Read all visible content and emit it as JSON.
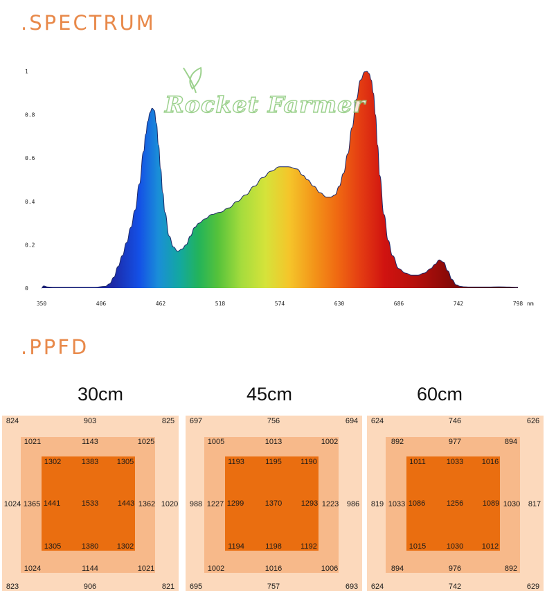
{
  "spectrum": {
    "title": ".SPECTRUM",
    "brand_text": "Rocket Farmer"
  },
  "ppfd": {
    "title": ".PPFD"
  },
  "chart_data": [
    {
      "type": "area",
      "x_unit": "nm",
      "x_ticks": [
        "350",
        "406",
        "462",
        "518",
        "574",
        "630",
        "686",
        "742",
        "798"
      ],
      "y_ticks": [
        "0",
        "0.2",
        "0.4",
        "0.6",
        "0.8",
        "1"
      ],
      "xlim": [
        350,
        798
      ],
      "ylim": [
        0,
        1
      ],
      "x": [
        350,
        352,
        356,
        362,
        370,
        380,
        390,
        400,
        410,
        414,
        418,
        422,
        426,
        430,
        434,
        438,
        442,
        446,
        448,
        450,
        452,
        454,
        456,
        458,
        460,
        462,
        464,
        466,
        470,
        474,
        478,
        482,
        486,
        490,
        494,
        498,
        504,
        510,
        518,
        526,
        534,
        542,
        550,
        558,
        566,
        574,
        582,
        590,
        596,
        600,
        606,
        612,
        618,
        622,
        626,
        630,
        634,
        638,
        642,
        646,
        650,
        654,
        656,
        658,
        660,
        662,
        664,
        666,
        668,
        672,
        676,
        680,
        686,
        692,
        698,
        704,
        710,
        716,
        720,
        724,
        728,
        732,
        736,
        740,
        744,
        748,
        752,
        760,
        770,
        780,
        790,
        798
      ],
      "values": [
        0,
        0.01,
        0.005,
        0.004,
        0.004,
        0.004,
        0.004,
        0.004,
        0.008,
        0.02,
        0.05,
        0.1,
        0.15,
        0.21,
        0.28,
        0.36,
        0.48,
        0.63,
        0.71,
        0.77,
        0.81,
        0.83,
        0.82,
        0.76,
        0.66,
        0.55,
        0.44,
        0.35,
        0.24,
        0.19,
        0.17,
        0.18,
        0.2,
        0.24,
        0.28,
        0.3,
        0.32,
        0.34,
        0.35,
        0.37,
        0.4,
        0.43,
        0.47,
        0.51,
        0.54,
        0.56,
        0.56,
        0.55,
        0.52,
        0.5,
        0.47,
        0.44,
        0.42,
        0.42,
        0.43,
        0.47,
        0.53,
        0.62,
        0.74,
        0.87,
        0.96,
        0.998,
        1.0,
        0.99,
        0.96,
        0.9,
        0.8,
        0.66,
        0.52,
        0.34,
        0.22,
        0.15,
        0.09,
        0.07,
        0.06,
        0.06,
        0.07,
        0.09,
        0.11,
        0.13,
        0.12,
        0.08,
        0.04,
        0.015,
        0.008,
        0.006,
        0.005,
        0.005,
        0.005,
        0.006,
        0.005,
        0.004
      ]
    },
    {
      "type": "table",
      "label": "30cm",
      "outer": {
        "tl": "824",
        "tc": "903",
        "tr": "825",
        "ml": "1024",
        "mr": "1020",
        "bl": "823",
        "bc": "906",
        "br": "821"
      },
      "mid": {
        "tl": "1021",
        "tc": "1143",
        "tr": "1025",
        "ml": "1365",
        "mr": "1362",
        "bl": "1024",
        "bc": "1144",
        "br": "1021"
      },
      "inner": {
        "tl": "1302",
        "tc": "1383",
        "tr": "1305",
        "ml": "1441",
        "c": "1533",
        "mr": "1443",
        "bl": "1305",
        "bc": "1380",
        "br": "1302"
      }
    },
    {
      "type": "table",
      "label": "45cm",
      "outer": {
        "tl": "697",
        "tc": "756",
        "tr": "694",
        "ml": "988",
        "mr": "986",
        "bl": "695",
        "bc": "757",
        "br": "693"
      },
      "mid": {
        "tl": "1005",
        "tc": "1013",
        "tr": "1002",
        "ml": "1227",
        "mr": "1223",
        "bl": "1002",
        "bc": "1016",
        "br": "1006"
      },
      "inner": {
        "tl": "1193",
        "tc": "1195",
        "tr": "1190",
        "ml": "1299",
        "c": "1370",
        "mr": "1293",
        "bl": "1194",
        "bc": "1198",
        "br": "1192"
      }
    },
    {
      "type": "table",
      "label": "60cm",
      "outer": {
        "tl": "624",
        "tc": "746",
        "tr": "626",
        "ml": "819",
        "mr": "817",
        "bl": "624",
        "bc": "742",
        "br": "629"
      },
      "mid": {
        "tl": "892",
        "tc": "977",
        "tr": "894",
        "ml": "1033",
        "mr": "1030",
        "bl": "894",
        "bc": "976",
        "br": "892"
      },
      "inner": {
        "tl": "1011",
        "tc": "1033",
        "tr": "1016",
        "ml": "1086",
        "c": "1256",
        "mr": "1089",
        "bl": "1015",
        "bc": "1030",
        "br": "1012"
      }
    }
  ]
}
